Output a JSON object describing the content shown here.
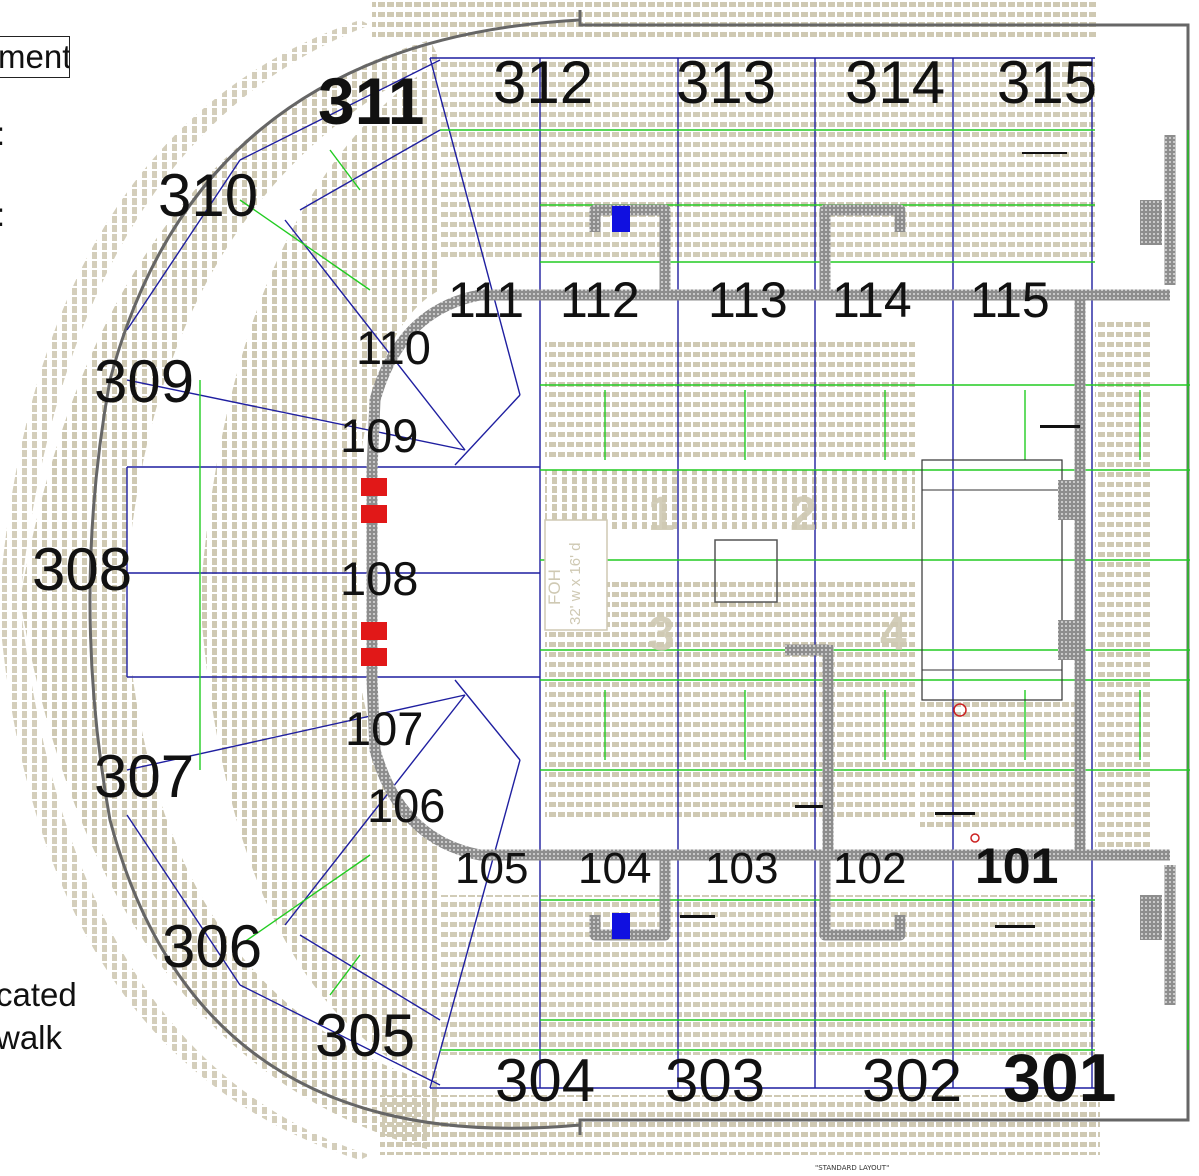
{
  "legend": {
    "box_text": "ment",
    "side_text_1": ":",
    "side_text_2": ":",
    "note_line_1": "cated",
    "note_line_2": "walk"
  },
  "footer_note": "\"STANDARD LAYOUT\"",
  "colors": {
    "seat": "#cfc9b3",
    "blue_line": "#1f1fa0",
    "green_line": "#22cc22",
    "walkway": "#9a9a9a",
    "accessible_red": "#e11818",
    "accessible_blue": "#1010e0",
    "outline": "#555555"
  },
  "floor": {
    "foh_label": "FOH",
    "foh_dims": "32' w x 16' d",
    "section_numbers": [
      "1",
      "2",
      "3",
      "4"
    ]
  },
  "sections_upper": [
    {
      "id": "311"
    },
    {
      "id": "312"
    },
    {
      "id": "313"
    },
    {
      "id": "314"
    },
    {
      "id": "315"
    },
    {
      "id": "310"
    },
    {
      "id": "309"
    },
    {
      "id": "308"
    },
    {
      "id": "307"
    },
    {
      "id": "306"
    },
    {
      "id": "305"
    },
    {
      "id": "304"
    },
    {
      "id": "303"
    },
    {
      "id": "302"
    },
    {
      "id": "301"
    }
  ],
  "sections_lower": [
    {
      "id": "111"
    },
    {
      "id": "112"
    },
    {
      "id": "113"
    },
    {
      "id": "114"
    },
    {
      "id": "115"
    },
    {
      "id": "110"
    },
    {
      "id": "109"
    },
    {
      "id": "108"
    },
    {
      "id": "107"
    },
    {
      "id": "106"
    },
    {
      "id": "105"
    },
    {
      "id": "104"
    },
    {
      "id": "103"
    },
    {
      "id": "102"
    },
    {
      "id": "101"
    }
  ]
}
